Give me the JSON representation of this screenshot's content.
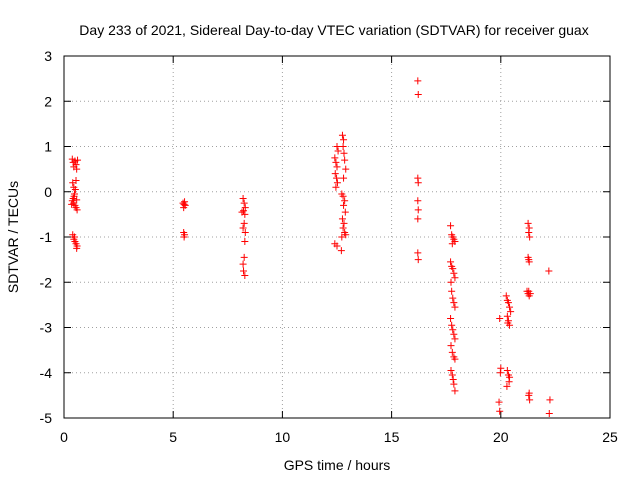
{
  "chart_data": {
    "type": "scatter",
    "title": "Day 233 of 2021, Sidereal Day-to-day VTEC variation (SDTVAR) for receiver guax",
    "xlabel": "GPS time / hours",
    "ylabel": "SDTVAR / TECUs",
    "xlim": [
      0,
      25
    ],
    "ylim": [
      -5,
      3
    ],
    "xticks": [
      0,
      5,
      10,
      15,
      20,
      25
    ],
    "yticks": [
      -5,
      -4,
      -3,
      -2,
      -1,
      0,
      1,
      2,
      3
    ],
    "grid": true,
    "legend": "none",
    "marker": "+",
    "color": "#ff0000",
    "series": [
      {
        "name": "SDTVAR",
        "points": [
          [
            0.38,
            0.72
          ],
          [
            0.42,
            0.65
          ],
          [
            0.45,
            0.55
          ],
          [
            0.5,
            0.68
          ],
          [
            0.55,
            0.6
          ],
          [
            0.58,
            0.5
          ],
          [
            0.62,
            0.7
          ],
          [
            0.4,
            0.2
          ],
          [
            0.45,
            0.1
          ],
          [
            0.52,
            0.05
          ],
          [
            0.55,
            0.25
          ],
          [
            0.48,
            -0.05
          ],
          [
            0.42,
            -0.15
          ],
          [
            0.38,
            -0.2
          ],
          [
            0.44,
            -0.25
          ],
          [
            0.5,
            -0.3
          ],
          [
            0.55,
            -0.35
          ],
          [
            0.6,
            -0.4
          ],
          [
            0.35,
            -0.28
          ],
          [
            0.58,
            -0.18
          ],
          [
            0.46,
            -0.1
          ],
          [
            0.4,
            -0.95
          ],
          [
            0.45,
            -1.05
          ],
          [
            0.5,
            -1.1
          ],
          [
            0.55,
            -1.15
          ],
          [
            0.6,
            -1.2
          ],
          [
            0.48,
            -1.0
          ],
          [
            0.58,
            -1.25
          ],
          [
            5.45,
            -0.25
          ],
          [
            5.5,
            -0.28
          ],
          [
            5.55,
            -0.3
          ],
          [
            5.48,
            -0.35
          ],
          [
            5.52,
            -0.22
          ],
          [
            5.48,
            -0.9
          ],
          [
            5.52,
            -0.95
          ],
          [
            5.5,
            -1.0
          ],
          [
            8.2,
            -0.15
          ],
          [
            8.25,
            -0.25
          ],
          [
            8.3,
            -0.35
          ],
          [
            8.22,
            -0.42
          ],
          [
            8.28,
            -0.5
          ],
          [
            8.15,
            -0.45
          ],
          [
            8.25,
            -0.7
          ],
          [
            8.2,
            -0.8
          ],
          [
            8.3,
            -0.9
          ],
          [
            8.28,
            -1.1
          ],
          [
            8.25,
            -1.45
          ],
          [
            8.2,
            -1.6
          ],
          [
            8.22,
            -1.75
          ],
          [
            8.28,
            -1.85
          ],
          [
            12.4,
            0.75
          ],
          [
            12.45,
            0.65
          ],
          [
            12.5,
            0.55
          ],
          [
            12.42,
            0.4
          ],
          [
            12.48,
            0.3
          ],
          [
            12.52,
            0.2
          ],
          [
            12.45,
            0.1
          ],
          [
            12.5,
            1.0
          ],
          [
            12.55,
            0.9
          ],
          [
            12.75,
            1.25
          ],
          [
            12.8,
            1.15
          ],
          [
            12.78,
            1.0
          ],
          [
            12.82,
            0.85
          ],
          [
            12.85,
            0.7
          ],
          [
            12.9,
            0.5
          ],
          [
            12.8,
            0.3
          ],
          [
            12.72,
            -0.05
          ],
          [
            12.78,
            -0.1
          ],
          [
            12.85,
            -0.2
          ],
          [
            12.8,
            -0.3
          ],
          [
            12.88,
            -0.45
          ],
          [
            12.75,
            -0.6
          ],
          [
            12.82,
            -0.7
          ],
          [
            12.78,
            -0.8
          ],
          [
            12.85,
            -0.9
          ],
          [
            12.9,
            -0.95
          ],
          [
            12.72,
            -1.0
          ],
          [
            12.4,
            -1.15
          ],
          [
            12.5,
            -1.2
          ],
          [
            12.7,
            -1.3
          ],
          [
            16.2,
            2.45
          ],
          [
            16.22,
            2.15
          ],
          [
            16.2,
            0.3
          ],
          [
            16.22,
            0.2
          ],
          [
            16.2,
            -0.2
          ],
          [
            16.22,
            -0.4
          ],
          [
            16.2,
            -0.6
          ],
          [
            16.2,
            -1.35
          ],
          [
            16.22,
            -1.5
          ],
          [
            17.7,
            -0.75
          ],
          [
            17.75,
            -0.95
          ],
          [
            17.8,
            -1.0
          ],
          [
            17.85,
            -1.05
          ],
          [
            17.9,
            -1.1
          ],
          [
            17.78,
            -1.15
          ],
          [
            17.7,
            -1.55
          ],
          [
            17.75,
            -1.65
          ],
          [
            17.8,
            -1.7
          ],
          [
            17.85,
            -1.8
          ],
          [
            17.9,
            -1.9
          ],
          [
            17.72,
            -2.0
          ],
          [
            17.75,
            -2.2
          ],
          [
            17.8,
            -2.35
          ],
          [
            17.85,
            -2.45
          ],
          [
            17.9,
            -2.55
          ],
          [
            17.7,
            -2.8
          ],
          [
            17.75,
            -2.95
          ],
          [
            17.8,
            -3.05
          ],
          [
            17.85,
            -3.15
          ],
          [
            17.9,
            -3.25
          ],
          [
            17.72,
            -3.4
          ],
          [
            17.78,
            -3.55
          ],
          [
            17.85,
            -3.65
          ],
          [
            17.9,
            -3.7
          ],
          [
            17.72,
            -3.95
          ],
          [
            17.78,
            -4.05
          ],
          [
            17.82,
            -4.15
          ],
          [
            17.85,
            -4.25
          ],
          [
            17.9,
            -4.4
          ],
          [
            19.95,
            -2.8
          ],
          [
            20.0,
            -3.9
          ],
          [
            19.98,
            -4.0
          ],
          [
            19.92,
            -4.65
          ],
          [
            19.95,
            -4.85
          ],
          [
            20.25,
            -2.3
          ],
          [
            20.3,
            -2.4
          ],
          [
            20.35,
            -2.45
          ],
          [
            20.4,
            -2.55
          ],
          [
            20.45,
            -2.65
          ],
          [
            20.3,
            -2.75
          ],
          [
            20.35,
            -2.85
          ],
          [
            20.4,
            -2.95
          ],
          [
            20.32,
            -2.9
          ],
          [
            20.3,
            -3.95
          ],
          [
            20.35,
            -4.05
          ],
          [
            20.4,
            -4.1
          ],
          [
            20.38,
            -4.2
          ],
          [
            20.28,
            -4.3
          ],
          [
            21.25,
            -0.7
          ],
          [
            21.3,
            -0.8
          ],
          [
            21.28,
            -0.9
          ],
          [
            21.32,
            -1.0
          ],
          [
            21.25,
            -1.45
          ],
          [
            21.3,
            -1.55
          ],
          [
            21.28,
            -1.5
          ],
          [
            21.2,
            -2.2
          ],
          [
            21.25,
            -2.25
          ],
          [
            21.3,
            -2.3
          ],
          [
            21.35,
            -2.25
          ],
          [
            21.28,
            -2.2
          ],
          [
            21.3,
            -4.45
          ],
          [
            21.28,
            -4.5
          ],
          [
            21.32,
            -4.6
          ],
          [
            22.2,
            -1.75
          ],
          [
            22.25,
            -4.6
          ],
          [
            22.22,
            -4.9
          ]
        ]
      }
    ]
  }
}
